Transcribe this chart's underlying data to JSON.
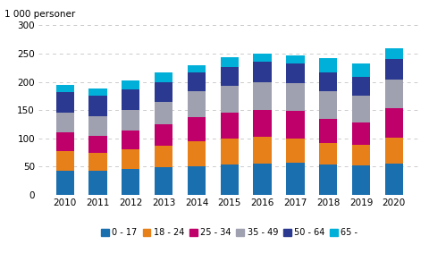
{
  "years": [
    2010,
    2011,
    2012,
    2013,
    2014,
    2015,
    2016,
    2017,
    2018,
    2019,
    2020
  ],
  "series": {
    "0 - 17": [
      42,
      42,
      46,
      49,
      51,
      54,
      55,
      57,
      54,
      52,
      55
    ],
    "18 - 24": [
      36,
      33,
      34,
      38,
      44,
      46,
      47,
      43,
      37,
      37,
      46
    ],
    "25 - 34": [
      32,
      30,
      34,
      38,
      43,
      46,
      48,
      48,
      44,
      39,
      52
    ],
    "35 - 49": [
      36,
      34,
      36,
      40,
      46,
      47,
      50,
      50,
      49,
      47,
      51
    ],
    "50 - 64": [
      36,
      36,
      36,
      34,
      32,
      33,
      36,
      35,
      33,
      33,
      36
    ],
    "65 -": [
      13,
      13,
      17,
      17,
      13,
      17,
      14,
      14,
      25,
      25,
      20
    ]
  },
  "colors": {
    "0 - 17": "#1a6faf",
    "18 - 24": "#e8801a",
    "25 - 34": "#c0006a",
    "35 - 49": "#9fa0b0",
    "50 - 64": "#2b3990",
    "65 -": "#00b0d8"
  },
  "ylabel": "1 000 personer",
  "ylim": [
    0,
    300
  ],
  "yticks": [
    0,
    50,
    100,
    150,
    200,
    250,
    300
  ],
  "grid_color": "#cccccc",
  "background_color": "#ffffff",
  "bar_width": 0.55
}
